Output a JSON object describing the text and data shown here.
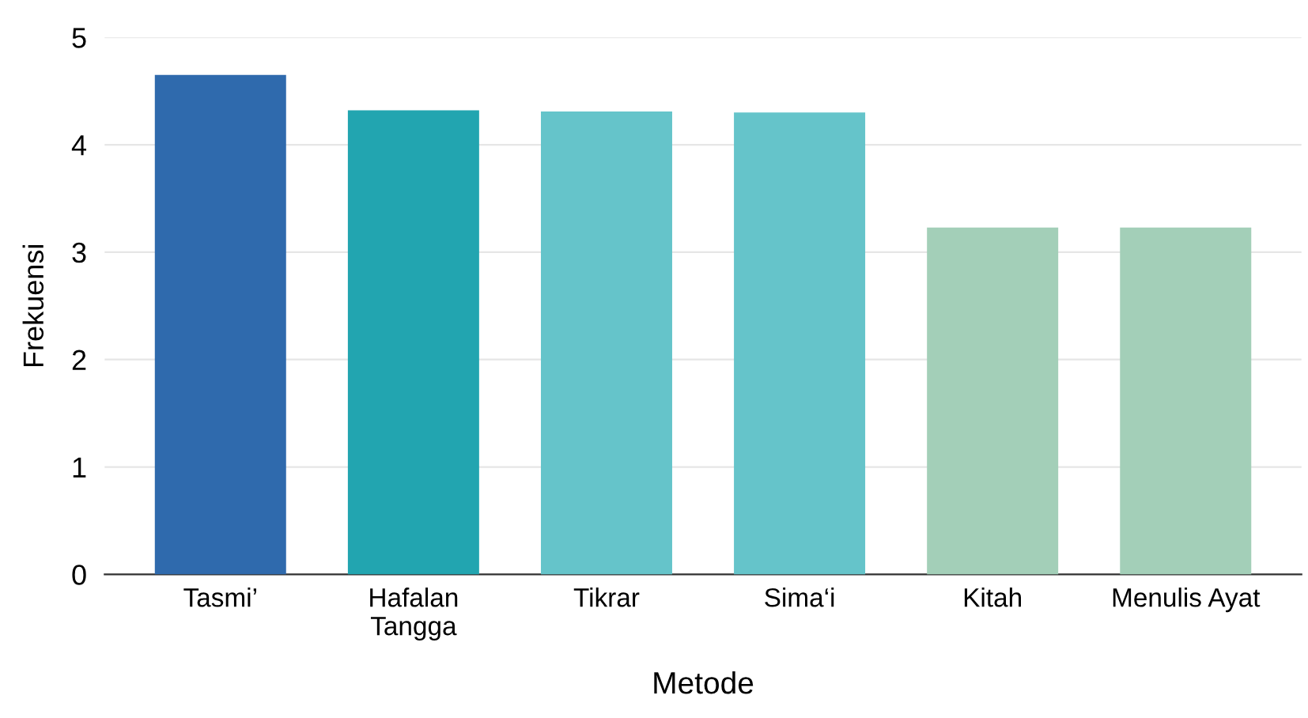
{
  "chart_data": {
    "type": "bar",
    "categories": [
      "Tasmi’",
      "Hafalan\nTangga",
      "Tikrar",
      "Sima‘i",
      "Kitah",
      "Menulis Ayat"
    ],
    "values": [
      4.65,
      4.32,
      4.31,
      4.3,
      3.23,
      3.23
    ],
    "colors": [
      "#2f6aad",
      "#22a5b0",
      "#65c4ca",
      "#65c4ca",
      "#a3cfb8",
      "#a3cfb8"
    ],
    "xlabel": "Metode",
    "ylabel": "Frekuensi",
    "ylim": [
      0,
      5
    ],
    "yticks": [
      0,
      1,
      2,
      3,
      4,
      5
    ],
    "grid": "y",
    "legend": false
  }
}
